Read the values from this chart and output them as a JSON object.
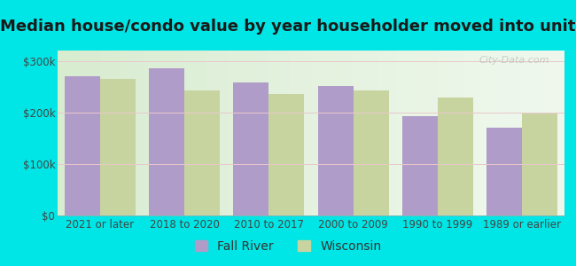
{
  "title": "Median house/condo value by year householder moved into unit",
  "categories": [
    "2021 or later",
    "2018 to 2020",
    "2010 to 2017",
    "2000 to 2009",
    "1990 to 1999",
    "1989 or earlier"
  ],
  "fall_river": [
    270000,
    285000,
    258000,
    252000,
    192000,
    170000
  ],
  "wisconsin": [
    265000,
    243000,
    235000,
    242000,
    228000,
    198000
  ],
  "fall_river_color": "#b09cc8",
  "wisconsin_color": "#c8d4a0",
  "background_color": "#00e5e5",
  "plot_bg_left": "#d8ecd0",
  "plot_bg_right": "#eef8f0",
  "ylim": [
    0,
    320000
  ],
  "yticks": [
    0,
    100000,
    200000,
    300000
  ],
  "ytick_labels": [
    "$0",
    "$100k",
    "$200k",
    "$300k"
  ],
  "bar_width": 0.42,
  "legend_fall_river": "Fall River",
  "legend_wisconsin": "Wisconsin",
  "title_fontsize": 13,
  "tick_fontsize": 8.5,
  "legend_fontsize": 10
}
